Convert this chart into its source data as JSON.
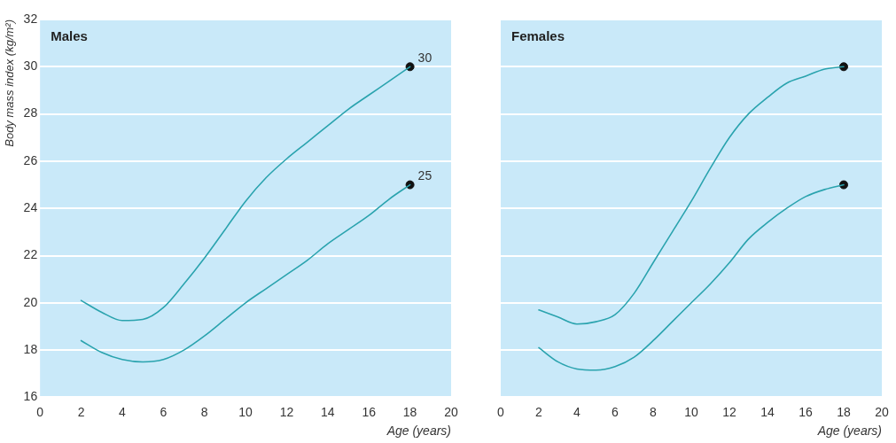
{
  "chart_data": [
    {
      "type": "line",
      "title": "Males",
      "xlabel": "Age (years)",
      "ylabel": "Body mass index (kg/m²)",
      "x": [
        2,
        3,
        4,
        5,
        6,
        7,
        8,
        9,
        10,
        11,
        12,
        13,
        14,
        15,
        16,
        17,
        18
      ],
      "xlim": [
        0,
        20
      ],
      "xticks": [
        0,
        2,
        4,
        6,
        8,
        10,
        12,
        14,
        16,
        18,
        20
      ],
      "ylim": [
        16,
        32
      ],
      "yticks": [
        16,
        18,
        20,
        22,
        24,
        26,
        28,
        30,
        32
      ],
      "grid": "y",
      "series": [
        {
          "color": "#2aa3ae",
          "marker": "none",
          "values": [
            20.1,
            19.6,
            19.25,
            19.3,
            19.8,
            20.8,
            21.9,
            23.1,
            24.3,
            25.3,
            26.1,
            26.8,
            27.5,
            28.2,
            28.8,
            29.4,
            30
          ]
        },
        {
          "color": "#2aa3ae",
          "marker": "none",
          "values": [
            18.4,
            17.9,
            17.6,
            17.5,
            17.6,
            18.0,
            18.6,
            19.3,
            20.0,
            20.6,
            21.2,
            21.8,
            22.5,
            23.1,
            23.7,
            24.4,
            25
          ]
        },
        {
          "type": "scatter",
          "color": "#111111",
          "marker": "circle",
          "values": [
            null,
            null,
            null,
            null,
            null,
            null,
            null,
            null,
            null,
            null,
            null,
            null,
            null,
            null,
            null,
            null,
            30
          ]
        },
        {
          "type": "scatter",
          "color": "#111111",
          "marker": "circle",
          "values": [
            null,
            null,
            null,
            null,
            null,
            null,
            null,
            null,
            null,
            null,
            null,
            null,
            null,
            null,
            null,
            null,
            25
          ]
        }
      ],
      "annotations": [
        {
          "text": "30",
          "x": 18,
          "y": 30
        },
        {
          "text": "25",
          "x": 18,
          "y": 25
        }
      ]
    },
    {
      "type": "line",
      "title": "Females",
      "xlabel": "Age (years)",
      "x": [
        2,
        3,
        4,
        5,
        6,
        7,
        8,
        9,
        10,
        11,
        12,
        13,
        14,
        15,
        16,
        17,
        18
      ],
      "xlim": [
        0,
        20
      ],
      "xticks": [
        0,
        2,
        4,
        6,
        8,
        10,
        12,
        14,
        16,
        18,
        20
      ],
      "ylim": [
        16,
        32
      ],
      "yticks": [
        16,
        18,
        20,
        22,
        24,
        26,
        28,
        30,
        32
      ],
      "grid": "y",
      "tick_labels": "x",
      "series": [
        {
          "color": "#2aa3ae",
          "marker": "none",
          "values": [
            19.7,
            19.4,
            19.1,
            19.2,
            19.5,
            20.4,
            21.7,
            23.0,
            24.3,
            25.7,
            27.0,
            28.0,
            28.7,
            29.3,
            29.6,
            29.9,
            30
          ]
        },
        {
          "color": "#2aa3ae",
          "marker": "none",
          "values": [
            18.1,
            17.5,
            17.2,
            17.15,
            17.3,
            17.7,
            18.4,
            19.2,
            20.0,
            20.8,
            21.7,
            22.7,
            23.4,
            24.0,
            24.5,
            24.8,
            25
          ]
        },
        {
          "type": "scatter",
          "color": "#111111",
          "marker": "circle",
          "values": [
            null,
            null,
            null,
            null,
            null,
            null,
            null,
            null,
            null,
            null,
            null,
            null,
            null,
            null,
            null,
            null,
            30
          ]
        },
        {
          "type": "scatter",
          "color": "#111111",
          "marker": "circle",
          "values": [
            null,
            null,
            null,
            null,
            null,
            null,
            null,
            null,
            null,
            null,
            null,
            null,
            null,
            null,
            null,
            null,
            25
          ]
        }
      ]
    }
  ]
}
